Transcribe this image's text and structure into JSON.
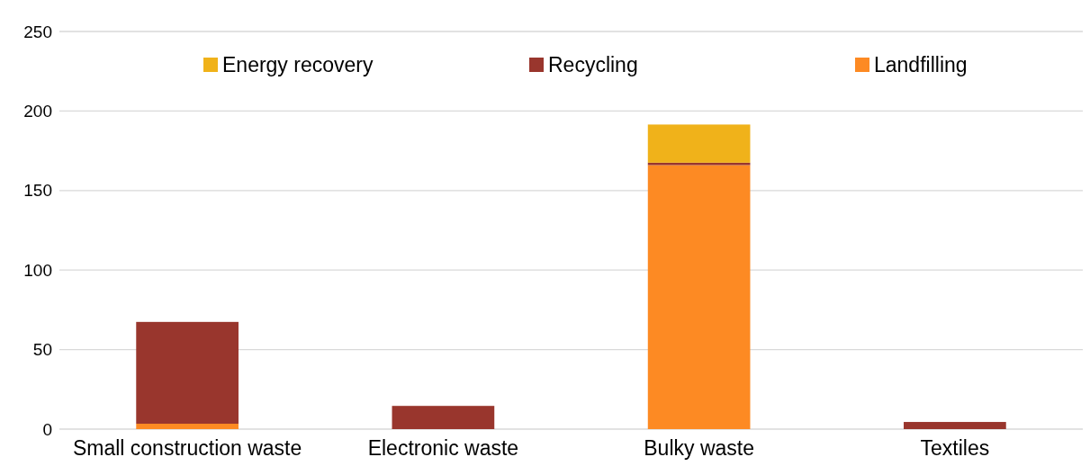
{
  "chart_data": {
    "type": "bar",
    "stacked": true,
    "categories": [
      "Small construction waste",
      "Electronic waste",
      "Bulky waste",
      "Textiles"
    ],
    "series": [
      {
        "name": "Landfilling",
        "color": "#fd8a23",
        "values": [
          3.4,
          0,
          166,
          0
        ]
      },
      {
        "name": "Recycling",
        "color": "#99362d",
        "values": [
          64,
          14.6,
          1.5,
          4.5
        ]
      },
      {
        "name": "Energy recovery",
        "color": "#f0b21a",
        "values": [
          0,
          0,
          24,
          0
        ]
      }
    ],
    "ylim": [
      0,
      250
    ],
    "yticks": [
      0,
      50,
      100,
      150,
      200,
      250
    ],
    "grid": "y",
    "legend": "top"
  }
}
